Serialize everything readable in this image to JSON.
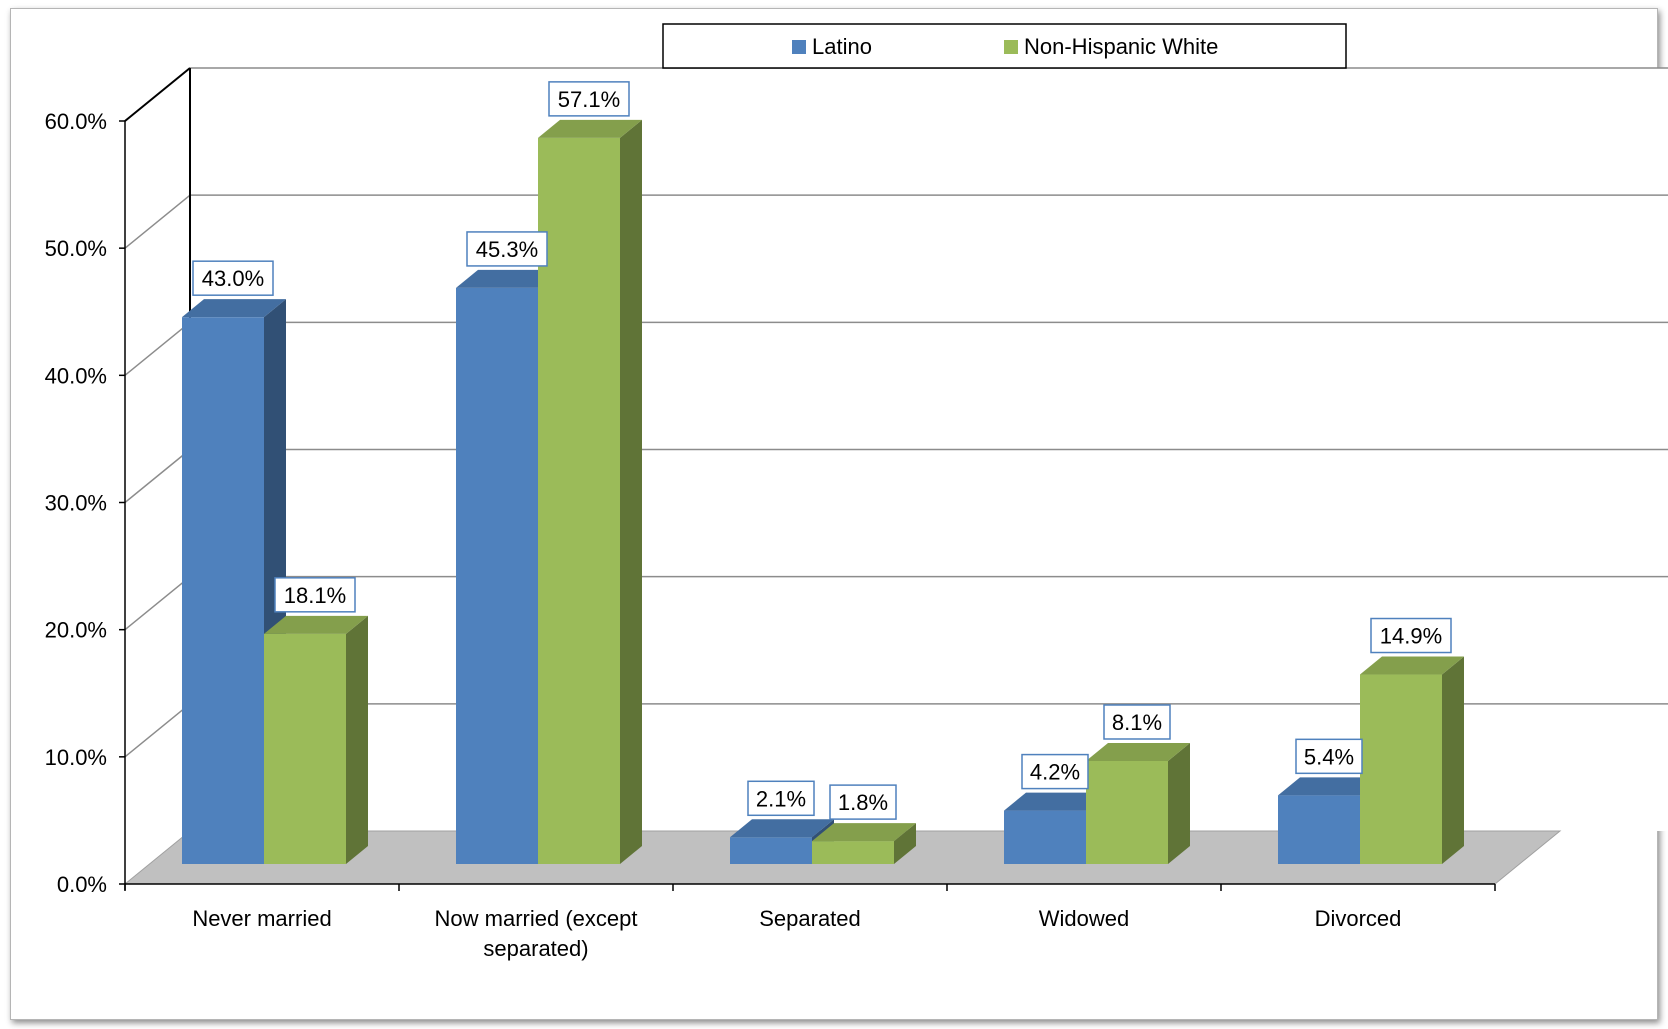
{
  "chart_data": {
    "type": "bar",
    "title": "",
    "xlabel": "",
    "ylabel": "",
    "ylim": [
      0,
      60
    ],
    "y_ticks": [
      "0.0%",
      "10.0%",
      "20.0%",
      "30.0%",
      "40.0%",
      "50.0%",
      "60.0%"
    ],
    "categories": [
      "Never married",
      "Now married (except separated)",
      "Separated",
      "Widowed",
      "Divorced"
    ],
    "series": [
      {
        "name": "Latino",
        "color": "#4f81bd",
        "values": [
          43.0,
          45.3,
          2.1,
          4.2,
          5.4
        ],
        "labels": [
          "43.0%",
          "45.3%",
          "2.1%",
          "4.2%",
          "5.4%"
        ]
      },
      {
        "name": "Non-Hispanic White",
        "color": "#9bbb59",
        "values": [
          18.1,
          57.1,
          1.8,
          8.1,
          14.9
        ],
        "labels": [
          "18.1%",
          "57.1%",
          "1.8%",
          "8.1%",
          "14.9%"
        ]
      }
    ],
    "legend_position": "top",
    "grid": true,
    "style": "3d-clustered-column"
  }
}
